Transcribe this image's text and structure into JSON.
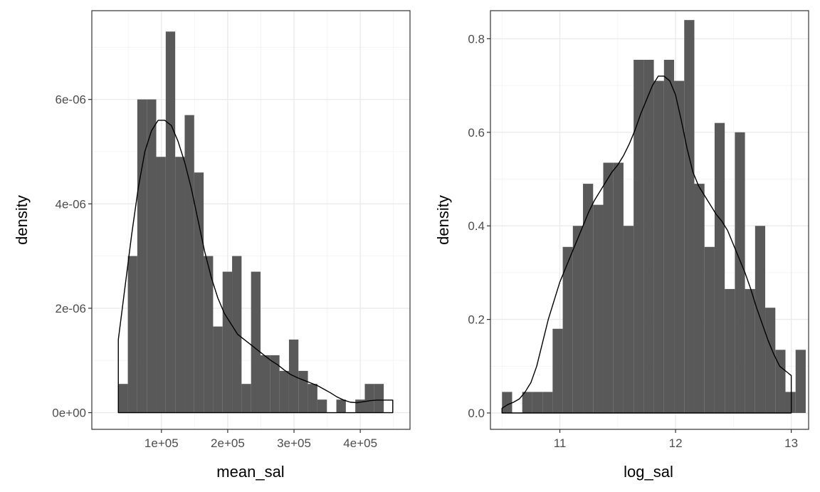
{
  "colors": {
    "background": "#ffffff",
    "bar_fill": "#595959",
    "grid_major": "#ebebeb",
    "grid_minor": "#f4f4f4",
    "panel_border": "#333333",
    "density_line": "#000000",
    "tick_text": "#4d4d4d"
  },
  "chart_data": [
    {
      "type": "bar",
      "subtype": "histogram-with-density",
      "xlabel": "mean_sal",
      "ylabel": "density",
      "xlim": [
        -5000,
        475000
      ],
      "ylim": [
        -3.2e-07,
        7.7e-06
      ],
      "grid": true,
      "x_major_ticks": [
        100000,
        200000,
        300000,
        400000
      ],
      "x_tick_labels": [
        "1e+05",
        "2e+05",
        "3e+05",
        "4e+05"
      ],
      "x_minor_ticks": [
        50000,
        150000,
        250000,
        350000,
        450000
      ],
      "y_major_ticks": [
        0,
        2e-06,
        4e-06,
        6e-06
      ],
      "y_tick_labels": [
        "0e+00",
        "2e-06",
        "4e-06",
        "6e-06"
      ],
      "y_minor_ticks": [
        1e-06,
        3e-06,
        5e-06,
        7e-06
      ],
      "bin_start": 35000,
      "bin_width": 14300,
      "values": [
        5.5e-07,
        3e-06,
        6e-06,
        6e-06,
        4.9e-06,
        7.3e-06,
        4.9e-06,
        5.7e-06,
        4.6e-06,
        3e-06,
        1.65e-06,
        2.7e-06,
        3e-06,
        5.5e-07,
        2.7e-06,
        1.1e-06,
        1.1e-06,
        8e-07,
        1.4e-06,
        8e-07,
        5.5e-07,
        2.5e-07,
        0,
        2.5e-07,
        0,
        2.5e-07,
        5.5e-07,
        5.5e-07
      ],
      "density_x": [
        35000,
        45000,
        55000,
        65000,
        75000,
        85000,
        95000,
        105000,
        115000,
        125000,
        135000,
        145000,
        155000,
        165000,
        175000,
        185000,
        195000,
        205000,
        215000,
        225000,
        235000,
        245000,
        255000,
        265000,
        275000,
        285000,
        295000,
        305000,
        315000,
        325000,
        335000,
        345000,
        355000,
        365000,
        375000,
        385000,
        395000,
        405000,
        415000,
        425000,
        435000,
        445000,
        449000
      ],
      "density_y": [
        1.4e-06,
        2.4e-06,
        3.4e-06,
        4.3e-06,
        5e-06,
        5.4e-06,
        5.6e-06,
        5.6e-06,
        5.5e-06,
        5.2e-06,
        4.8e-06,
        4.3e-06,
        3.7e-06,
        3.1e-06,
        2.6e-06,
        2.2e-06,
        1.9e-06,
        1.7e-06,
        1.5e-06,
        1.4e-06,
        1.3e-06,
        1.2e-06,
        1.1e-06,
        1e-06,
        9.2e-07,
        8.2e-07,
        7.3e-07,
        6.7e-07,
        6.2e-07,
        5.7e-07,
        5.2e-07,
        4.5e-07,
        3.8e-07,
        3e-07,
        2.4e-07,
        2e-07,
        1.9e-07,
        2.1e-07,
        2.3e-07,
        2.4e-07,
        2.4e-07,
        2.4e-07,
        2.4e-07
      ]
    },
    {
      "type": "bar",
      "subtype": "histogram-with-density",
      "xlabel": "log_sal",
      "ylabel": "density",
      "xlim": [
        10.4,
        13.15
      ],
      "ylim": [
        -0.035,
        0.86
      ],
      "grid": true,
      "x_major_ticks": [
        11,
        12,
        13
      ],
      "x_tick_labels": [
        "11",
        "12",
        "13"
      ],
      "x_minor_ticks": [
        10.5,
        11.5,
        12.5
      ],
      "y_major_ticks": [
        0,
        0.2,
        0.4,
        0.6,
        0.8
      ],
      "y_tick_labels": [
        "0.0",
        "0.2",
        "0.4",
        "0.6",
        "0.8"
      ],
      "y_minor_ticks": [
        0.1,
        0.3,
        0.5,
        0.7
      ],
      "bin_start": 10.5,
      "bin_width": 0.0875,
      "values": [
        0.045,
        0,
        0.045,
        0.045,
        0.045,
        0.18,
        0.355,
        0.4,
        0.49,
        0.445,
        0.535,
        0.535,
        0.4,
        0.755,
        0.755,
        0.71,
        0.755,
        0.71,
        0.84,
        0.49,
        0.355,
        0.62,
        0.265,
        0.6,
        0.265,
        0.4,
        0.225,
        0.135,
        0.045,
        0.135
      ],
      "density_x": [
        10.5,
        10.55,
        10.6,
        10.65,
        10.7,
        10.75,
        10.8,
        10.85,
        10.9,
        10.95,
        11.0,
        11.05,
        11.1,
        11.15,
        11.2,
        11.25,
        11.3,
        11.35,
        11.4,
        11.45,
        11.5,
        11.55,
        11.6,
        11.65,
        11.7,
        11.75,
        11.8,
        11.85,
        11.9,
        11.95,
        12.0,
        12.05,
        12.1,
        12.15,
        12.2,
        12.25,
        12.3,
        12.35,
        12.4,
        12.45,
        12.5,
        12.55,
        12.6,
        12.65,
        12.7,
        12.75,
        12.8,
        12.85,
        12.9,
        12.95,
        13.0
      ],
      "density_y": [
        0.01,
        0.018,
        0.023,
        0.03,
        0.045,
        0.065,
        0.1,
        0.15,
        0.2,
        0.24,
        0.28,
        0.31,
        0.34,
        0.37,
        0.4,
        0.43,
        0.455,
        0.475,
        0.495,
        0.515,
        0.53,
        0.55,
        0.575,
        0.605,
        0.64,
        0.67,
        0.7,
        0.72,
        0.72,
        0.71,
        0.68,
        0.625,
        0.565,
        0.515,
        0.485,
        0.465,
        0.445,
        0.425,
        0.41,
        0.39,
        0.36,
        0.33,
        0.3,
        0.265,
        0.225,
        0.19,
        0.155,
        0.125,
        0.1,
        0.09,
        0.08
      ]
    }
  ]
}
